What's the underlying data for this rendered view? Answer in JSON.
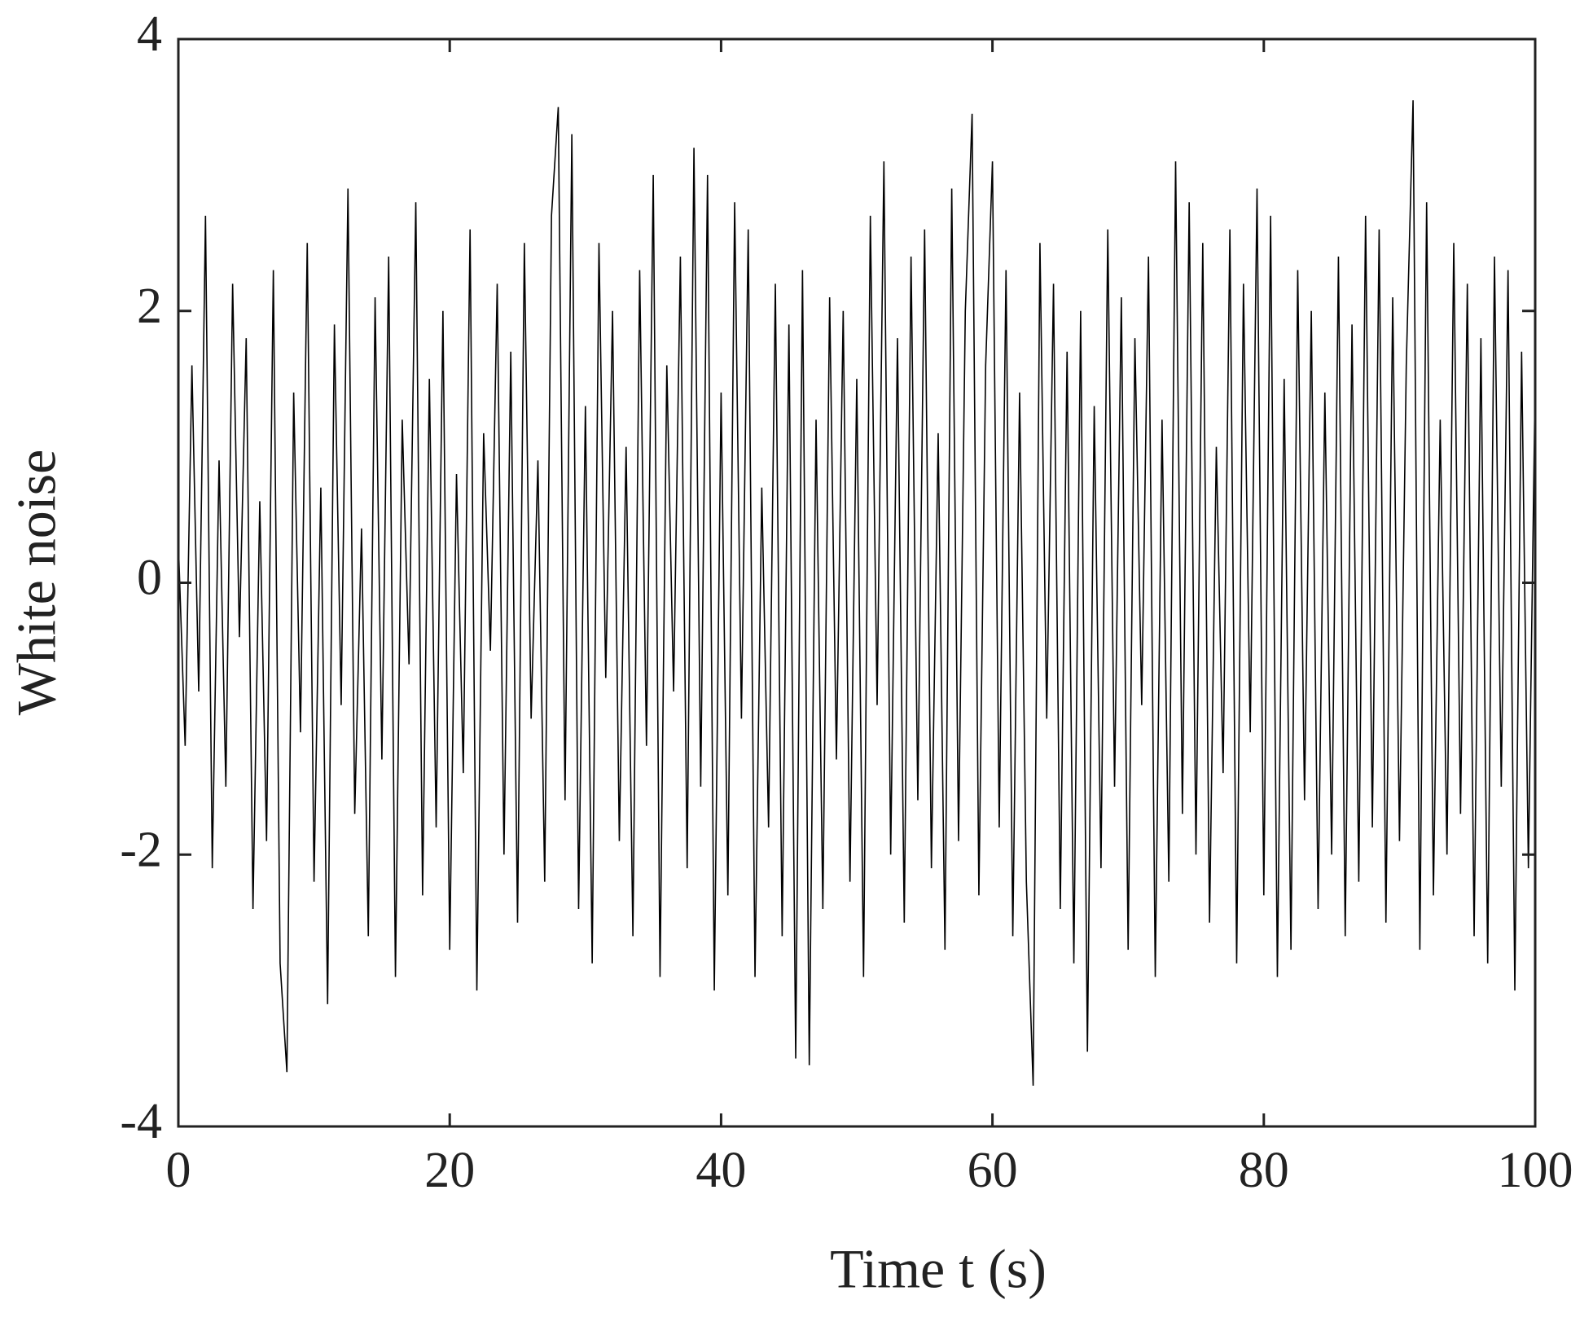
{
  "chart_data": {
    "type": "line",
    "xlabel": "Time t (s)",
    "ylabel": "White noise",
    "xlim": [
      0,
      100
    ],
    "ylim": [
      -4,
      4
    ],
    "xticks": [
      0,
      20,
      40,
      60,
      80,
      100
    ],
    "yticks": [
      -4,
      -2,
      0,
      2,
      4
    ],
    "color": "#000000",
    "x": [
      0,
      0.5,
      1,
      1.5,
      2,
      2.5,
      3,
      3.5,
      4,
      4.5,
      5,
      5.5,
      6,
      6.5,
      7,
      7.5,
      8,
      8.5,
      9,
      9.5,
      10,
      10.5,
      11,
      11.5,
      12,
      12.5,
      13,
      13.5,
      14,
      14.5,
      15,
      15.5,
      16,
      16.5,
      17,
      17.5,
      18,
      18.5,
      19,
      19.5,
      20,
      20.5,
      21,
      21.5,
      22,
      22.5,
      23,
      23.5,
      24,
      24.5,
      25,
      25.5,
      26,
      26.5,
      27,
      27.5,
      28,
      28.5,
      29,
      29.5,
      30,
      30.5,
      31,
      31.5,
      32,
      32.5,
      33,
      33.5,
      34,
      34.5,
      35,
      35.5,
      36,
      36.5,
      37,
      37.5,
      38,
      38.5,
      39,
      39.5,
      40,
      40.5,
      41,
      41.5,
      42,
      42.5,
      43,
      43.5,
      44,
      44.5,
      45,
      45.5,
      46,
      46.5,
      47,
      47.5,
      48,
      48.5,
      49,
      49.5,
      50,
      50.5,
      51,
      51.5,
      52,
      52.5,
      53,
      53.5,
      54,
      54.5,
      55,
      55.5,
      56,
      56.5,
      57,
      57.5,
      58,
      58.5,
      59,
      59.5,
      60,
      60.5,
      61,
      61.5,
      62,
      62.5,
      63,
      63.5,
      64,
      64.5,
      65,
      65.5,
      66,
      66.5,
      67,
      67.5,
      68,
      68.5,
      69,
      69.5,
      70,
      70.5,
      71,
      71.5,
      72,
      72.5,
      73,
      73.5,
      74,
      74.5,
      75,
      75.5,
      76,
      76.5,
      77,
      77.5,
      78,
      78.5,
      79,
      79.5,
      80,
      80.5,
      81,
      81.5,
      82,
      82.5,
      83,
      83.5,
      84,
      84.5,
      85,
      85.5,
      86,
      86.5,
      87,
      87.5,
      88,
      88.5,
      89,
      89.5,
      90,
      90.5,
      91,
      91.5,
      92,
      92.5,
      93,
      93.5,
      94,
      94.5,
      95,
      95.5,
      96,
      96.5,
      97,
      97.5,
      98,
      98.5,
      99,
      99.5,
      100
    ],
    "values": [
      0.3,
      -1.2,
      1.6,
      -0.8,
      2.7,
      -2.1,
      0.9,
      -1.5,
      2.2,
      -0.4,
      1.8,
      -2.4,
      0.6,
      -1.9,
      2.3,
      -2.8,
      -3.6,
      1.4,
      -1.1,
      2.5,
      -2.2,
      0.7,
      -3.1,
      1.9,
      -0.9,
      2.9,
      -1.7,
      0.4,
      -2.6,
      2.1,
      -1.3,
      2.4,
      -2.9,
      1.2,
      -0.6,
      2.8,
      -2.3,
      1.5,
      -1.8,
      2.0,
      -2.7,
      0.8,
      -1.4,
      2.6,
      -3.0,
      1.1,
      -0.5,
      2.2,
      -2.0,
      1.7,
      -2.5,
      2.5,
      -1.0,
      0.9,
      -2.2,
      2.7,
      3.5,
      -1.6,
      3.3,
      -2.4,
      1.3,
      -2.8,
      2.5,
      -0.7,
      2.0,
      -1.9,
      1.0,
      -2.6,
      2.3,
      -1.2,
      3.0,
      -2.9,
      1.6,
      -0.8,
      2.4,
      -2.1,
      3.2,
      -1.5,
      3.0,
      -3.0,
      1.4,
      -2.3,
      2.8,
      -1.0,
      2.6,
      -2.9,
      0.7,
      -1.8,
      2.2,
      -2.6,
      1.9,
      -3.5,
      2.3,
      -3.55,
      1.2,
      -2.4,
      2.1,
      -1.3,
      2.0,
      -2.2,
      1.5,
      -2.9,
      2.7,
      -0.9,
      3.1,
      -2.0,
      1.8,
      -2.5,
      2.4,
      -1.6,
      2.6,
      -2.1,
      1.1,
      -2.7,
      2.9,
      -1.9,
      2.0,
      3.45,
      -2.3,
      1.6,
      3.1,
      -1.8,
      2.3,
      -2.6,
      1.4,
      -2.2,
      -3.7,
      2.5,
      -1.0,
      2.2,
      -2.4,
      1.7,
      -2.8,
      2.0,
      -3.45,
      1.3,
      -2.1,
      2.6,
      -1.5,
      2.1,
      -2.7,
      1.8,
      -0.9,
      2.4,
      -2.9,
      1.2,
      -2.2,
      3.1,
      -1.7,
      2.8,
      -2.0,
      2.5,
      -2.5,
      1.0,
      -1.4,
      2.6,
      -2.8,
      2.2,
      -1.1,
      2.9,
      -2.3,
      2.7,
      -2.9,
      1.5,
      -2.7,
      2.3,
      -1.6,
      2.0,
      -2.4,
      1.4,
      -2.0,
      2.4,
      -2.6,
      1.9,
      -2.2,
      2.7,
      -1.8,
      2.6,
      -2.5,
      2.1,
      -1.9,
      1.6,
      3.55,
      -2.7,
      2.8,
      -2.3,
      1.2,
      -2.0,
      2.5,
      -1.7,
      2.2,
      -2.6,
      1.8,
      -2.8,
      2.4,
      -1.5,
      2.3,
      -3.0,
      1.7,
      -2.1,
      1.5
    ]
  }
}
